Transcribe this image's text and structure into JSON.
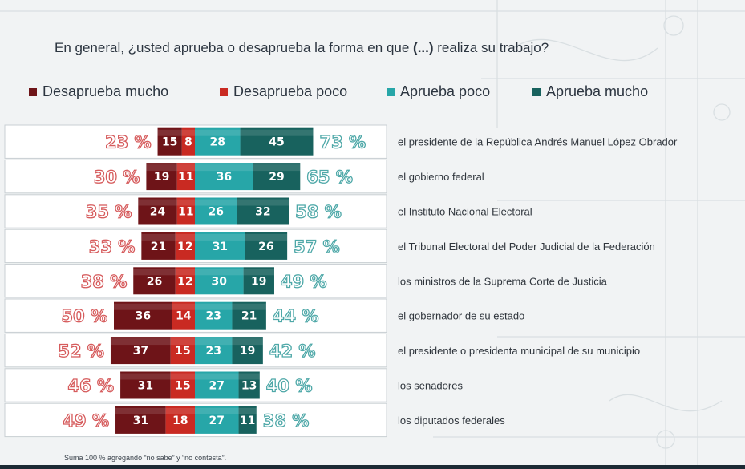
{
  "question": {
    "before": "En general, ¿usted aprueba o desaprueba  la forma en que ",
    "emphasis": "(...)",
    "after": " realiza su trabajo?"
  },
  "legend": [
    {
      "label": "Desaprueba mucho",
      "color": "#6e1418"
    },
    {
      "label": "Desaprueba poco",
      "color": "#c92a22"
    },
    {
      "label": "Aprueba poco",
      "color": "#27a6a8"
    },
    {
      "label": "Aprueba mucho",
      "color": "#18625e"
    }
  ],
  "chart_data": {
    "type": "bar",
    "subtype": "diverging-stacked-horizontal",
    "title": "En general, ¿usted aprueba o desaprueba  la forma en que (...) realiza su trabajo?",
    "series_order": [
      "Desaprueba mucho",
      "Desaprueba poco",
      "Aprueba poco",
      "Aprueba mucho"
    ],
    "categories": [
      "el presidente de la República Andrés Manuel López Obrador",
      "el gobierno federal",
      "el Instituto Nacional Electoral",
      "el Tribunal Electoral del Poder Judicial de la Federación",
      "los ministros de la Suprema Corte de Justicia",
      "el gobernador de su estado",
      "el presidente o presidenta municipal de su municipio",
      "los senadores",
      "los diputados federales"
    ],
    "series": [
      {
        "name": "Desaprueba mucho",
        "values": [
          15,
          19,
          24,
          21,
          26,
          36,
          37,
          31,
          31
        ]
      },
      {
        "name": "Desaprueba poco",
        "values": [
          8,
          11,
          11,
          12,
          12,
          14,
          15,
          15,
          18
        ]
      },
      {
        "name": "Aprueba poco",
        "values": [
          28,
          36,
          26,
          31,
          30,
          23,
          23,
          27,
          27
        ]
      },
      {
        "name": "Aprueba mucho",
        "values": [
          45,
          29,
          32,
          26,
          19,
          21,
          19,
          13,
          11
        ]
      }
    ],
    "totals_disapprove": [
      "23 %",
      "30 %",
      "35 %",
      "33 %",
      "38 %",
      "50 %",
      "52 %",
      "46 %",
      "49 %"
    ],
    "totals_approve": [
      "73 %",
      "65 %",
      "58 %",
      "57 %",
      "49 %",
      "44 %",
      "42 %",
      "40 %",
      "38 %"
    ],
    "colors": {
      "total_disapprove": "#d65b5c",
      "total_approve": "#4ea8a8",
      "segment_text": "#ffffff",
      "row_label": "#2f353c"
    }
  },
  "footnote": "Suma 100 %  agregando “no sabe” y “no contesta”."
}
